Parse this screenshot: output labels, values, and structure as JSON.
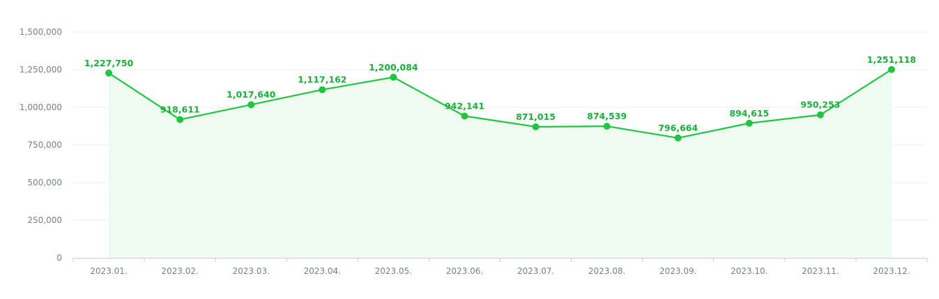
{
  "chart_data": {
    "type": "area",
    "title": "",
    "xlabel": "",
    "ylabel": "",
    "categories": [
      "2023.01.",
      "2023.02.",
      "2023.03.",
      "2023.04.",
      "2023.05.",
      "2023.06.",
      "2023.07.",
      "2023.08.",
      "2023.09.",
      "2023.10.",
      "2023.11.",
      "2023.12."
    ],
    "values": [
      1227750,
      918611,
      1017640,
      1117162,
      1200084,
      942141,
      871015,
      874539,
      796664,
      894615,
      950253,
      1251118
    ],
    "value_labels": [
      "1,227,750",
      "918,611",
      "1,017,640",
      "1,117,162",
      "1,200,084",
      "942,141",
      "871,015",
      "874,539",
      "796,664",
      "894,615",
      "950,253",
      "1,251,118"
    ],
    "ylim": [
      0,
      1500000
    ],
    "yticks": [
      0,
      250000,
      500000,
      750000,
      1000000,
      1250000,
      1500000
    ],
    "ytick_labels": [
      "0",
      "250,000",
      "500,000",
      "750,000",
      "1,000,000",
      "1,250,000",
      "1,500,000"
    ],
    "grid": true,
    "legend": "none",
    "colors": {
      "line": "#22c443",
      "fill": "#eefcf0",
      "label": "#1aaf38",
      "grid": "#e9ecef",
      "axis": "#c8d0dc",
      "tick_text": "#7a7f87"
    }
  }
}
